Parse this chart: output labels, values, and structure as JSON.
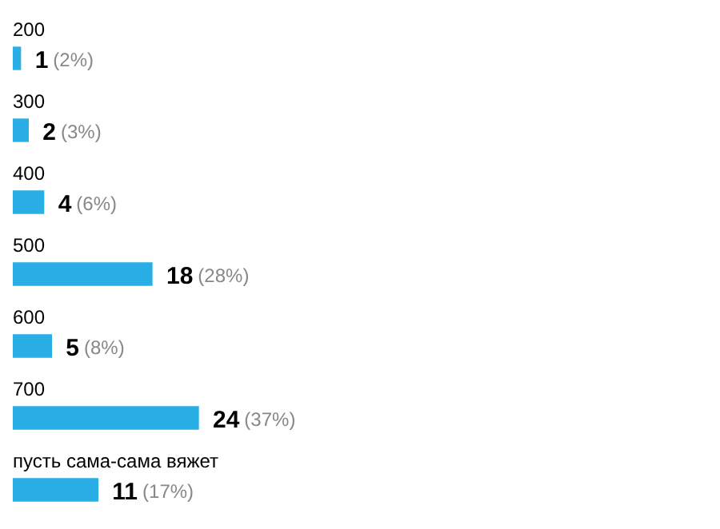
{
  "chart_data": {
    "type": "bar",
    "orientation": "horizontal",
    "categories": [
      "200",
      "300",
      "400",
      "500",
      "600",
      "700",
      "пусть сама-сама вяжет"
    ],
    "values": [
      1,
      2,
      4,
      18,
      5,
      24,
      11
    ],
    "value_labels": [
      "1 (2%)",
      "2 (3%)",
      "4 (6%)",
      "18 (28%)",
      "5 (8%)",
      "24 (37%)",
      "11 (17%)"
    ],
    "color": "#29aee6"
  }
}
